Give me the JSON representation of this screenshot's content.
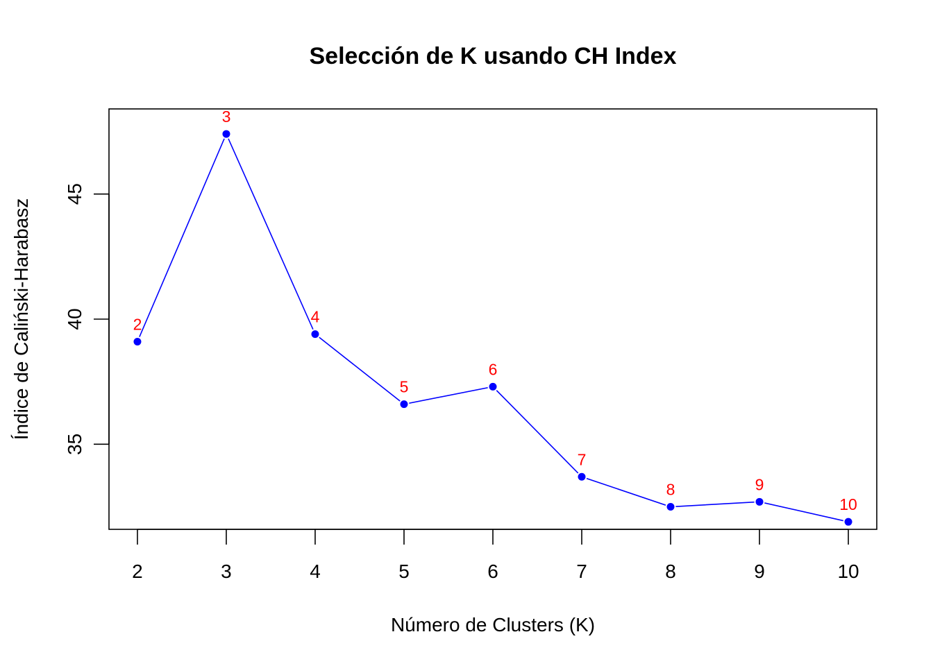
{
  "chart_data": {
    "type": "line",
    "title": "Selección de K usando CH Index",
    "xlabel": "Número de Clusters (K)",
    "ylabel": "Índice de Caliński-Harabasz",
    "x": [
      2,
      3,
      4,
      5,
      6,
      7,
      8,
      9,
      10
    ],
    "x_tick_labels": [
      "2",
      "3",
      "4",
      "5",
      "6",
      "7",
      "8",
      "9",
      "10"
    ],
    "y": [
      39.1,
      47.4,
      39.4,
      36.6,
      37.3,
      33.7,
      32.5,
      32.7,
      31.9
    ],
    "point_labels": [
      "2",
      "3",
      "4",
      "5",
      "6",
      "7",
      "8",
      "9",
      "10"
    ],
    "y_ticks": [
      35,
      40,
      45
    ],
    "y_tick_labels": [
      "35",
      "40",
      "45"
    ],
    "xlim": [
      1.68,
      10.32
    ],
    "ylim": [
      31.6,
      48.4
    ],
    "grid": false,
    "colors": {
      "line": "#0000FF",
      "points": "#0000FF",
      "point_labels": "#FF0000",
      "axes": "#000000"
    }
  }
}
